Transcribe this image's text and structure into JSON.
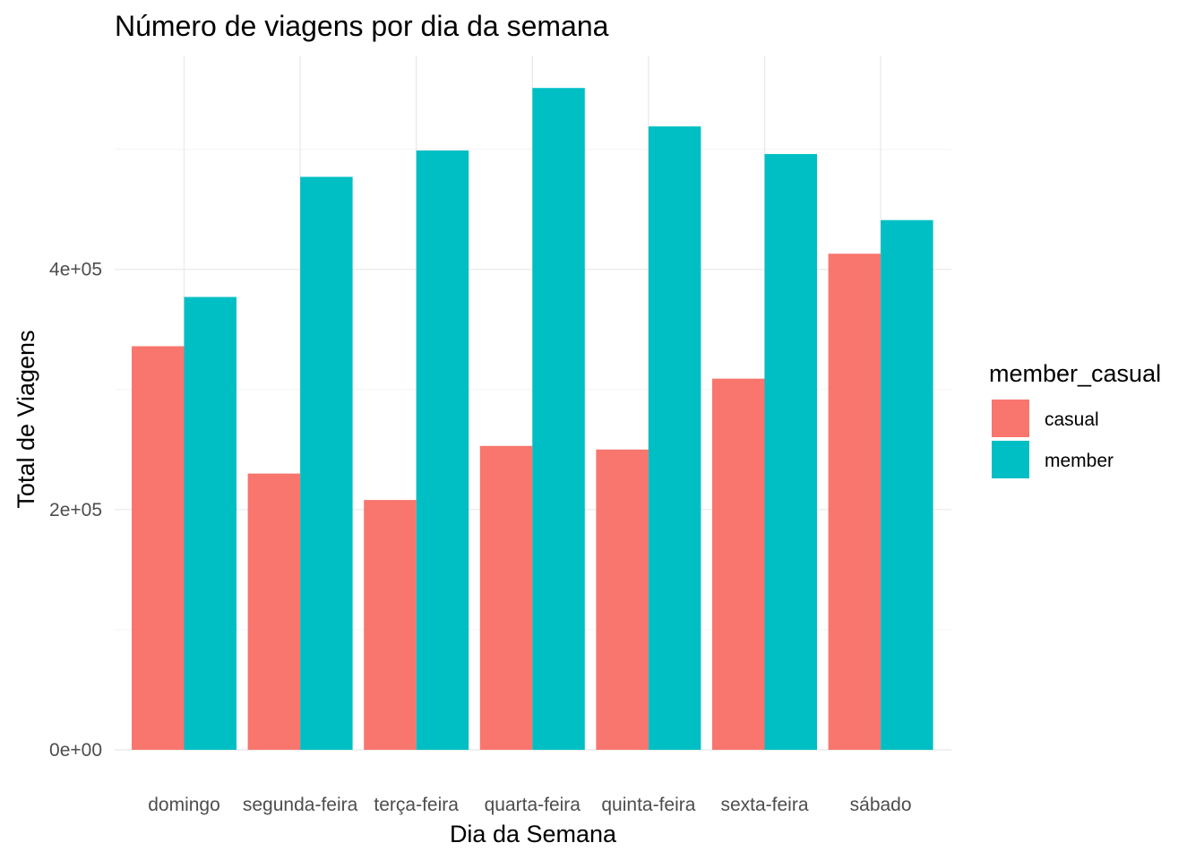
{
  "chart_data": {
    "type": "bar",
    "title": "Número de viagens por dia da semana",
    "xlabel": "Dia da Semana",
    "ylabel": "Total de Viagens",
    "categories": [
      "domingo",
      "segunda-feira",
      "terça-feira",
      "quarta-feira",
      "quinta-feira",
      "sexta-feira",
      "sábado"
    ],
    "series": [
      {
        "name": "casual",
        "color": "#F8766D",
        "values": [
          336000,
          230000,
          208000,
          253000,
          250000,
          309000,
          413000
        ]
      },
      {
        "name": "member",
        "color": "#00BFC4",
        "values": [
          377000,
          477000,
          499000,
          551000,
          519000,
          496000,
          441000
        ]
      }
    ],
    "ylim": [
      0,
      578000
    ],
    "yticks": [
      {
        "value": 0,
        "label": "0e+00"
      },
      {
        "value": 200000,
        "label": "2e+05"
      },
      {
        "value": 400000,
        "label": "4e+05"
      }
    ],
    "yminor": [
      100000,
      300000,
      500000
    ],
    "grid": true,
    "legend": {
      "title": "member_casual",
      "position": "right"
    }
  }
}
